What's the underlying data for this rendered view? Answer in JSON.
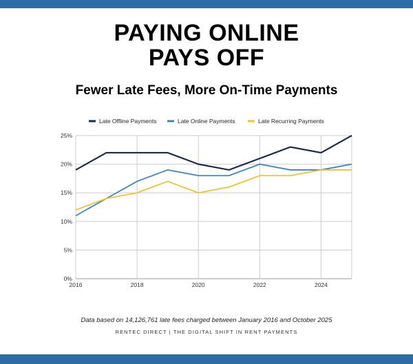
{
  "title_lines": [
    "PAYING ONLINE",
    "PAYS OFF"
  ],
  "subtitle": "Fewer Late Fees, More On-Time Payments",
  "footnote": "Data based on 14,126,761 late fees charged between January 2016 and October 2025",
  "credit": "RENTEC DIRECT | THE DIGITAL SHIFT IN RENT PAYMENTS",
  "colors": {
    "band": "#2b6ea6",
    "grid": "#cccccc"
  },
  "chart_data": {
    "type": "line",
    "x": [
      2016,
      2017,
      2018,
      2019,
      2020,
      2021,
      2022,
      2023,
      2024,
      2025
    ],
    "x_ticks": [
      "2016",
      "2018",
      "2020",
      "2022",
      "2024"
    ],
    "y_ticks": [
      "0%",
      "5%",
      "10%",
      "15%",
      "20%",
      "25%"
    ],
    "ylim": [
      0,
      25
    ],
    "grid": true,
    "legend_position": "top",
    "series": [
      {
        "name": "Late Offline Payments",
        "color": "#1b2b49",
        "values": [
          19,
          22,
          22,
          22,
          20,
          19,
          21,
          23,
          22,
          25
        ]
      },
      {
        "name": "Late Online Payments",
        "color": "#3c86c0",
        "values": [
          11,
          14,
          17,
          19,
          18,
          18,
          20,
          19,
          19,
          20
        ]
      },
      {
        "name": "Late Recurring Payments",
        "color": "#f2c12e",
        "values": [
          12,
          14,
          15,
          17,
          15,
          16,
          18,
          18,
          19,
          19
        ]
      }
    ]
  }
}
